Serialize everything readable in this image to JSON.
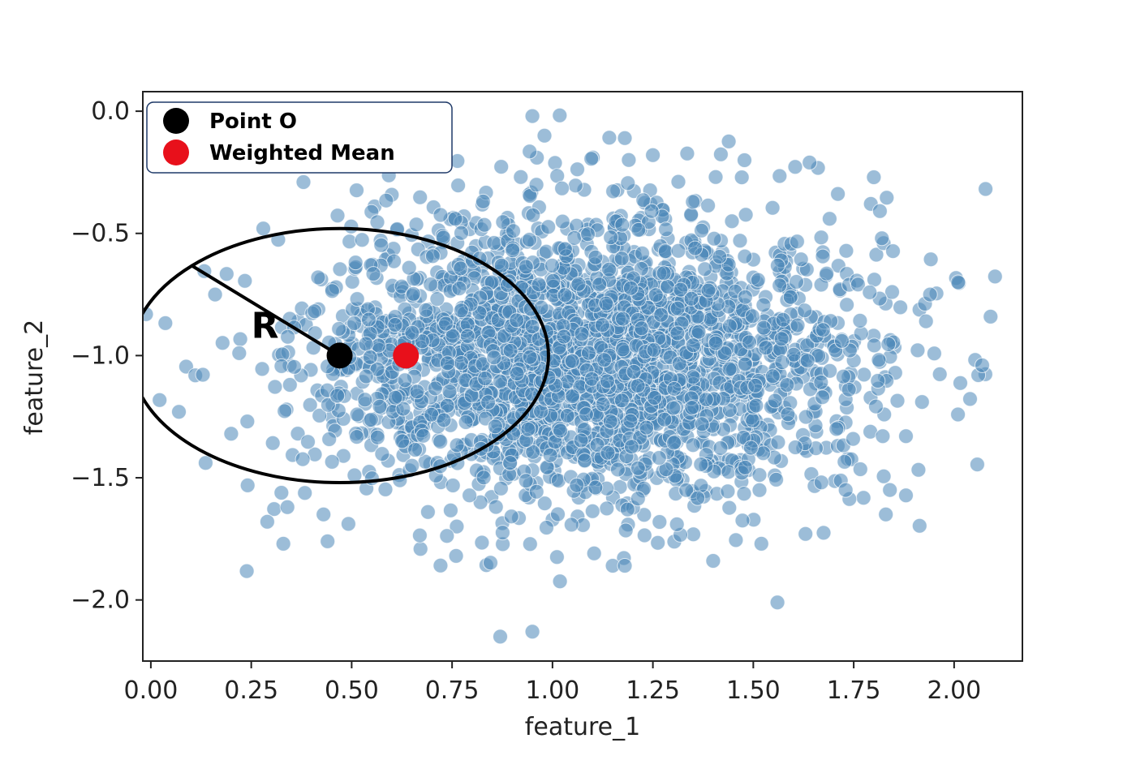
{
  "chart_data": {
    "type": "scatter",
    "xlabel": "feature_1",
    "ylabel": "feature_2",
    "xlim": [
      -0.02,
      2.17
    ],
    "ylim": [
      -2.25,
      0.08
    ],
    "x_ticks": [
      "0.00",
      "0.25",
      "0.50",
      "0.75",
      "1.00",
      "1.25",
      "1.50",
      "1.75",
      "2.00"
    ],
    "x_tick_values": [
      0.0,
      0.25,
      0.5,
      0.75,
      1.0,
      1.25,
      1.5,
      1.75,
      2.0
    ],
    "y_ticks": [
      "0.0",
      "−0.5",
      "−1.0",
      "−1.5",
      "−2.0"
    ],
    "y_tick_values": [
      0.0,
      -0.5,
      -1.0,
      -1.5,
      -2.0
    ],
    "grid": false,
    "legend_position": "top-left",
    "point_color": "#4a86b8",
    "distribution": {
      "center": [
        1.1,
        -1.0
      ],
      "spread": [
        0.33,
        0.3
      ],
      "count": 2600,
      "outlier_points": [
        [
          0.07,
          -1.23
        ],
        [
          0.16,
          -0.75
        ],
        [
          0.2,
          -1.32
        ],
        [
          0.22,
          -0.99
        ],
        [
          0.29,
          -1.68
        ],
        [
          0.33,
          -1.77
        ],
        [
          0.34,
          -1.62
        ],
        [
          0.28,
          -0.48
        ],
        [
          0.95,
          -0.02
        ],
        [
          0.98,
          -0.1
        ],
        [
          1.18,
          -0.11
        ],
        [
          1.25,
          -0.18
        ],
        [
          0.87,
          -2.15
        ],
        [
          0.95,
          -2.13
        ],
        [
          1.56,
          -2.01
        ],
        [
          1.8,
          -0.27
        ],
        [
          1.94,
          -0.75
        ],
        [
          2.01,
          -0.7
        ],
        [
          2.06,
          -1.08
        ],
        [
          2.07,
          -1.04
        ],
        [
          1.92,
          -1.19
        ],
        [
          1.88,
          -1.33
        ],
        [
          1.84,
          -1.55
        ],
        [
          1.83,
          -1.65
        ],
        [
          1.52,
          -1.77
        ],
        [
          1.63,
          -1.73
        ],
        [
          1.4,
          -1.84
        ],
        [
          1.15,
          -1.86
        ],
        [
          1.18,
          -1.86
        ],
        [
          0.76,
          -1.82
        ],
        [
          0.43,
          -1.65
        ],
        [
          0.44,
          -1.76
        ],
        [
          0.59,
          -0.17
        ],
        [
          0.38,
          -0.29
        ],
        [
          0.68,
          -0.2
        ],
        [
          1.64,
          -0.21
        ],
        [
          1.69,
          -0.44
        ],
        [
          1.82,
          -0.52
        ],
        [
          0.69,
          -1.64
        ],
        [
          1.73,
          -1.55
        ]
      ]
    },
    "highlight_points": [
      {
        "name": "Point O",
        "x": 0.47,
        "y": -1.0,
        "color": "#000000"
      },
      {
        "name": "Weighted Mean",
        "x": 0.635,
        "y": -1.0,
        "color": "#e8101b"
      }
    ],
    "circle": {
      "center_x": 0.47,
      "center_y": -1.0,
      "radius": 0.52,
      "color": "#000000"
    },
    "radius_label": "R",
    "legend_items": [
      {
        "label": "Point O",
        "color": "#000000"
      },
      {
        "label": "Weighted Mean",
        "color": "#e8101b"
      }
    ],
    "legend_border_color": "#1f3a68"
  }
}
